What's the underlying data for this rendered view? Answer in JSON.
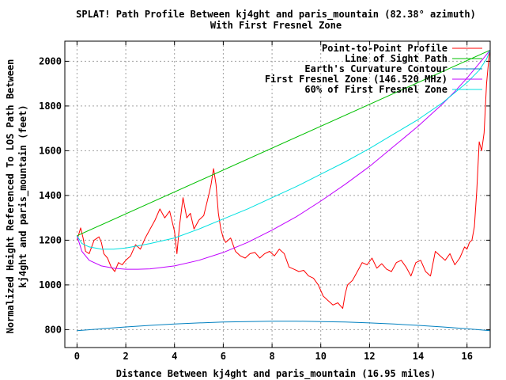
{
  "chart_data": {
    "type": "line",
    "title": "SPLAT! Path Profile Between kj4ght and paris_mountain (82.38° azimuth)",
    "subtitle": "With First Fresnel Zone",
    "xlabel": "Distance Between kj4ght and paris_mountain (16.95 miles)",
    "ylabel": "Normalized Height Referenced To LOS Path Between kj4ght and paris_mountain (feet)",
    "ylabel_lines": [
      "Normalized Height Referenced To LOS Path Between",
      "kj4ght and paris_mountain (feet)"
    ],
    "xlim": [
      -0.5,
      16.95
    ],
    "ylim": [
      720,
      2090
    ],
    "xticks": [
      0,
      2,
      4,
      6,
      8,
      10,
      12,
      14,
      16
    ],
    "yticks": [
      800,
      1000,
      1200,
      1400,
      1600,
      1800,
      2000
    ],
    "grid": true,
    "legend_position": "top-right",
    "series": [
      {
        "name": "Point-to-Point Profile",
        "color": "#ff0000",
        "x": [
          0,
          0.15,
          0.25,
          0.35,
          0.5,
          0.7,
          0.9,
          1.0,
          1.1,
          1.25,
          1.4,
          1.55,
          1.7,
          1.85,
          2.0,
          2.2,
          2.4,
          2.6,
          2.8,
          3.0,
          3.2,
          3.4,
          3.6,
          3.8,
          4.0,
          4.1,
          4.2,
          4.35,
          4.5,
          4.65,
          4.8,
          5.0,
          5.2,
          5.4,
          5.5,
          5.6,
          5.7,
          5.8,
          5.9,
          6.0,
          6.1,
          6.3,
          6.5,
          6.7,
          6.9,
          7.1,
          7.3,
          7.5,
          7.7,
          7.9,
          8.1,
          8.3,
          8.5,
          8.7,
          8.9,
          9.1,
          9.3,
          9.5,
          9.7,
          9.9,
          10.1,
          10.3,
          10.5,
          10.7,
          10.9,
          11.0,
          11.1,
          11.3,
          11.5,
          11.7,
          11.9,
          12.1,
          12.3,
          12.5,
          12.7,
          12.9,
          13.1,
          13.3,
          13.5,
          13.7,
          13.9,
          14.1,
          14.3,
          14.5,
          14.7,
          14.9,
          15.1,
          15.3,
          15.5,
          15.7,
          15.9,
          16.0,
          16.1,
          16.2,
          16.3,
          16.4,
          16.5,
          16.6,
          16.7,
          16.8,
          16.9,
          16.95
        ],
        "values": [
          1200,
          1255,
          1210,
          1150,
          1140,
          1200,
          1215,
          1190,
          1140,
          1120,
          1080,
          1060,
          1100,
          1090,
          1110,
          1130,
          1180,
          1160,
          1210,
          1250,
          1290,
          1340,
          1300,
          1330,
          1240,
          1140,
          1260,
          1390,
          1300,
          1320,
          1250,
          1290,
          1310,
          1400,
          1450,
          1520,
          1450,
          1320,
          1250,
          1210,
          1190,
          1210,
          1150,
          1130,
          1120,
          1140,
          1145,
          1120,
          1140,
          1150,
          1130,
          1160,
          1140,
          1080,
          1070,
          1060,
          1065,
          1040,
          1030,
          1000,
          950,
          930,
          910,
          920,
          895,
          960,
          1000,
          1020,
          1060,
          1100,
          1090,
          1120,
          1075,
          1095,
          1070,
          1060,
          1100,
          1110,
          1080,
          1040,
          1100,
          1110,
          1060,
          1040,
          1150,
          1130,
          1110,
          1140,
          1090,
          1120,
          1170,
          1160,
          1190,
          1200,
          1260,
          1420,
          1640,
          1600,
          1680,
          1900,
          2020,
          2050
        ]
      },
      {
        "name": "Line of Sight Path",
        "color": "#00c000",
        "x": [
          0,
          16.95
        ],
        "values": [
          1220,
          2050
        ]
      },
      {
        "name": "Earth's Curvature Contour",
        "color": "#0080c0",
        "x": [
          0,
          1,
          2,
          3,
          4,
          5,
          6,
          7,
          8,
          8.475,
          9,
          10,
          11,
          12,
          13,
          14,
          15,
          16,
          16.95
        ],
        "values": [
          795,
          804,
          812,
          819,
          825,
          830,
          834,
          836,
          838,
          838,
          838,
          836,
          834,
          830,
          825,
          819,
          812,
          804,
          795
        ]
      },
      {
        "name": "First Fresnel Zone (146.520 MHz)",
        "color": "#c000ff",
        "x": [
          0,
          0.2,
          0.5,
          1,
          1.5,
          2,
          2.5,
          3,
          4,
          5,
          6,
          7,
          8,
          9,
          10,
          11,
          12,
          13,
          14,
          15,
          15.5,
          16,
          16.5,
          16.8,
          16.95
        ],
        "values": [
          1220,
          1150,
          1110,
          1085,
          1075,
          1070,
          1070,
          1072,
          1085,
          1110,
          1145,
          1190,
          1245,
          1305,
          1375,
          1450,
          1530,
          1620,
          1710,
          1810,
          1865,
          1925,
          1990,
          2030,
          2050
        ]
      },
      {
        "name": "60% of First Fresnel Zone",
        "color": "#00e0e0",
        "x": [
          0,
          0.2,
          0.5,
          1,
          1.5,
          2,
          2.5,
          3,
          4,
          5,
          6,
          7,
          8,
          9,
          10,
          11,
          12,
          13,
          14,
          15,
          15.5,
          16,
          16.5,
          16.8,
          16.95
        ],
        "values": [
          1220,
          1185,
          1170,
          1160,
          1160,
          1165,
          1175,
          1185,
          1210,
          1250,
          1295,
          1340,
          1390,
          1440,
          1495,
          1550,
          1610,
          1675,
          1740,
          1815,
          1860,
          1905,
          1960,
          2010,
          2050
        ]
      }
    ]
  }
}
